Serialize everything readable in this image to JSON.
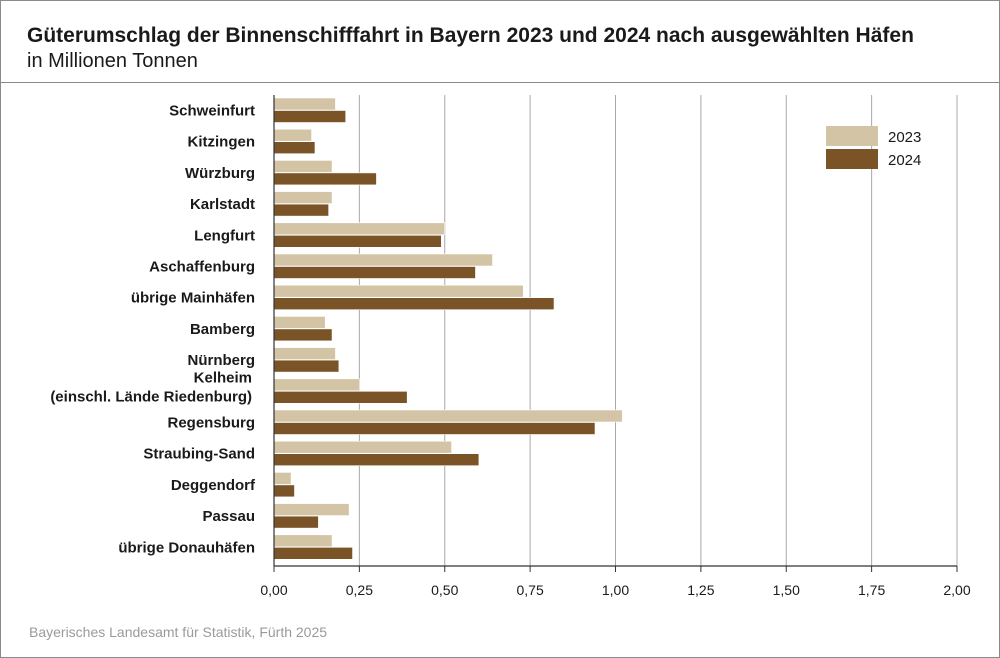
{
  "header": {
    "title": "Güterumschlag der Binnenschifffahrt in Bayern 2023 und 2024 nach ausgewählten Häfen",
    "subtitle": "in Millionen Tonnen"
  },
  "footer": {
    "source": "Bayerisches Landesamt für Statistik, Fürth 2025"
  },
  "colors": {
    "series_2023": "#d3c4a6",
    "series_2024": "#7a5427",
    "grid": "#a8a8a8",
    "axis": "#333333"
  },
  "chart_data": {
    "type": "bar",
    "orientation": "horizontal",
    "title": "Güterumschlag der Binnenschifffahrt in Bayern 2023 und 2024 nach ausgewählten Häfen",
    "subtitle": "in Millionen Tonnen",
    "categories": [
      [
        "Schweinfurt"
      ],
      [
        "Kitzingen"
      ],
      [
        "Würzburg"
      ],
      [
        "Karlstadt"
      ],
      [
        "Lengfurt"
      ],
      [
        "Aschaffenburg"
      ],
      [
        "übrige Mainhäfen"
      ],
      [
        "Bamberg"
      ],
      [
        "Nürnberg"
      ],
      [
        "Kelheim",
        "(einschl. Lände Riedenburg)"
      ],
      [
        "Regensburg"
      ],
      [
        "Straubing-Sand"
      ],
      [
        "Deggendorf"
      ],
      [
        "Passau"
      ],
      [
        "übrige Donauhäfen"
      ]
    ],
    "series": [
      {
        "name": "2023",
        "color": "#d3c4a6",
        "values": [
          0.18,
          0.11,
          0.17,
          0.17,
          0.5,
          0.64,
          0.73,
          0.15,
          0.18,
          0.25,
          1.02,
          0.52,
          0.05,
          0.22,
          0.17
        ]
      },
      {
        "name": "2024",
        "color": "#7a5427",
        "values": [
          0.21,
          0.12,
          0.3,
          0.16,
          0.49,
          0.59,
          0.82,
          0.17,
          0.19,
          0.39,
          0.94,
          0.6,
          0.06,
          0.13,
          0.23
        ]
      }
    ],
    "xlim": [
      0,
      2.0
    ],
    "xticks": [
      "0,00",
      "0,25",
      "0,50",
      "0,75",
      "1,00",
      "1,25",
      "1,50",
      "1,75",
      "2,00"
    ],
    "grid": true,
    "legend_position": "top-right"
  }
}
